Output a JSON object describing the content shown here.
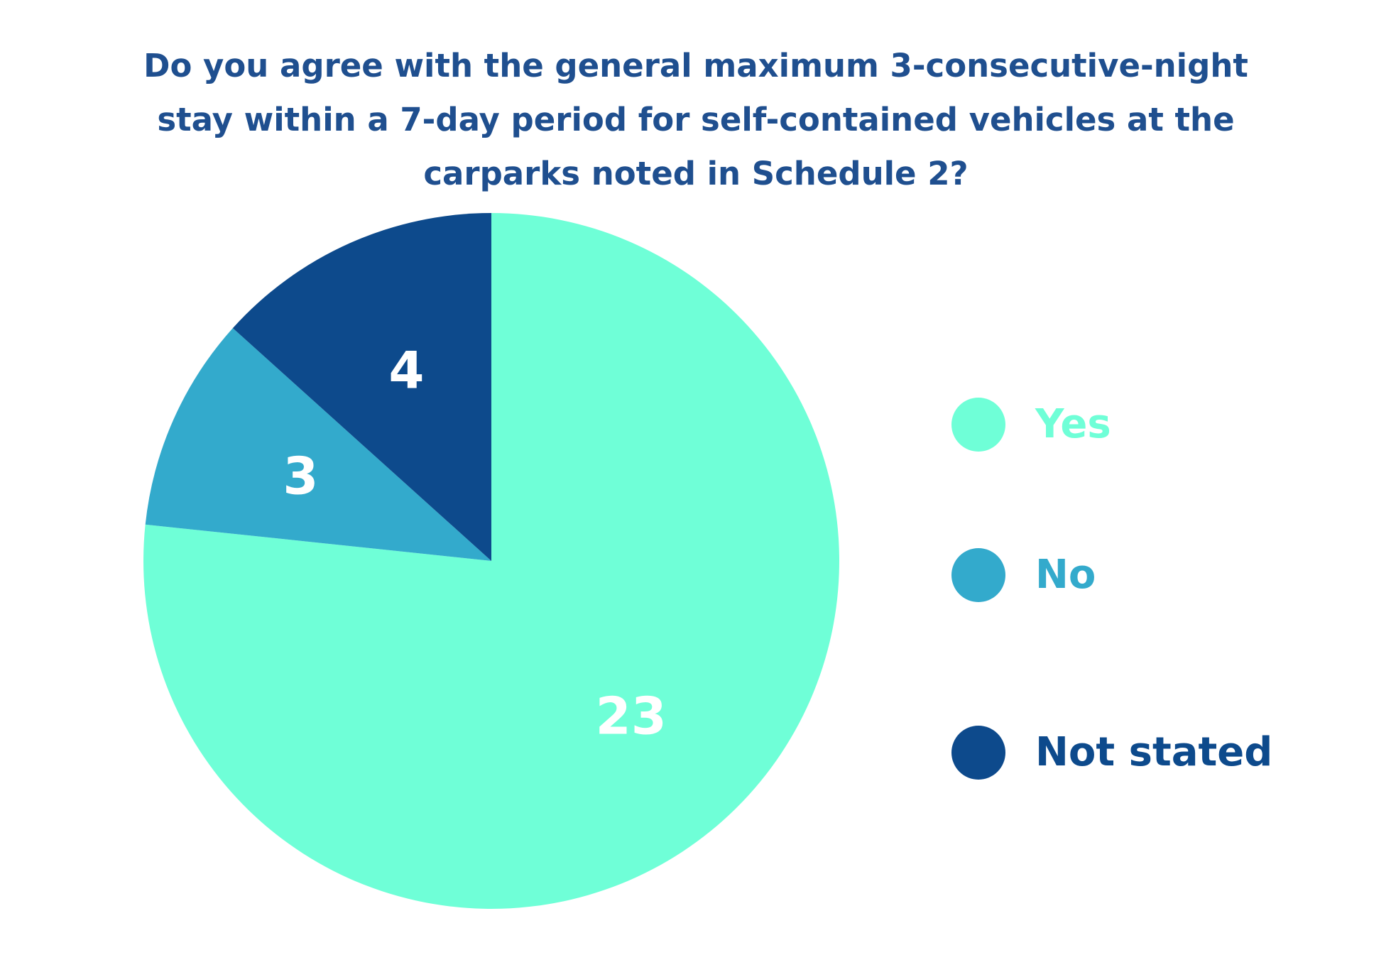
{
  "chart_data": {
    "type": "pie",
    "title": "Do you agree with the general maximum 3-consecutive-night stay within a 7-day period for self-contained vehicles at the carparks noted in Schedule 2?",
    "categories": [
      "Yes",
      "No",
      "Not stated"
    ],
    "values": [
      23,
      3,
      4
    ],
    "data_labels": [
      "23",
      "3",
      "4"
    ],
    "colors": [
      "#6fffd7",
      "#33aacc",
      "#0d4a8c"
    ],
    "start_angle": "12 o'clock",
    "direction": "clockwise",
    "legend_position": "right"
  }
}
